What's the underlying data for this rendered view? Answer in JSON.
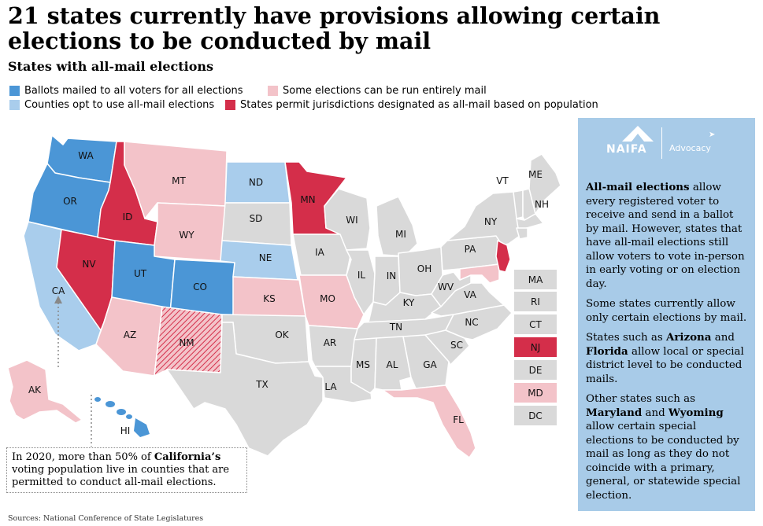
{
  "title": "21 states currently have provisions allowing certain elections to be conducted by mail",
  "subtitle": "States with all-mail elections",
  "legend": {
    "items": [
      {
        "label": "Ballots mailed to all voters for all elections",
        "color": "#4b96d6"
      },
      {
        "label": "Some elections can be run entirely mail",
        "color": "#f3c3c9"
      },
      {
        "label": "Counties opt to use all-mail elections",
        "color": "#a9cdec"
      },
      {
        "label": "States permit jurisdictions designated as all-mail based on population",
        "color": "#d42e4a"
      }
    ]
  },
  "colors": {
    "all_mail": "#4b96d6",
    "some_mail": "#f3c3c9",
    "county_opt": "#a9cdec",
    "population": "#d42e4a",
    "none": "#d9d9d9",
    "panel": "#a8cbe8"
  },
  "states": {
    "WA": "WA",
    "OR": "OR",
    "CA": "CA",
    "NV": "NV",
    "ID": "ID",
    "MT": "MT",
    "WY": "WY",
    "UT": "UT",
    "CO": "CO",
    "AZ": "AZ",
    "NM": "NM",
    "ND": "ND",
    "SD": "SD",
    "NE": "NE",
    "KS": "KS",
    "OK": "OK",
    "TX": "TX",
    "MN": "MN",
    "IA": "IA",
    "MO": "MO",
    "AR": "AR",
    "LA": "LA",
    "WI": "WI",
    "IL": "IL",
    "MI": "MI",
    "IN": "IN",
    "OH": "OH",
    "KY": "KY",
    "TN": "TN",
    "MS": "MS",
    "AL": "AL",
    "GA": "GA",
    "FL": "FL",
    "SC": "SC",
    "NC": "NC",
    "VA": "VA",
    "WV": "WV",
    "PA": "PA",
    "NY": "NY",
    "VT": "VT",
    "NH": "NH",
    "ME": "ME",
    "AK": "AK",
    "HI": "HI"
  },
  "small_states": [
    {
      "abbr": "MA",
      "color": "#d9d9d9"
    },
    {
      "abbr": "RI",
      "color": "#d9d9d9"
    },
    {
      "abbr": "CT",
      "color": "#d9d9d9"
    },
    {
      "abbr": "NJ",
      "color": "#d42e4a"
    },
    {
      "abbr": "DE",
      "color": "#d9d9d9"
    },
    {
      "abbr": "MD",
      "color": "#f3c3c9"
    },
    {
      "abbr": "DC",
      "color": "#d9d9d9"
    }
  ],
  "callout": {
    "pre": "In 2020, more than 50% of ",
    "bold": "California’s",
    "post": " voting population live in counties that are permitted to conduct all-mail elections."
  },
  "logo": {
    "brand": "NAIFA",
    "tag": "Advocacy"
  },
  "panel": {
    "p1_bold": "All-mail elections",
    "p1_rest": " allow every registered voter to receive and send in a ballot by mail. However, states that have all-mail elections still allow voters to vote in-person in early voting or on election day.",
    "p2": "Some states currently allow only certain elections by mail.",
    "p3_a": "States such as ",
    "p3_b1": "Arizona",
    "p3_c": " and ",
    "p3_b2": "Florida",
    "p3_d": " allow local or special district level to be conducted mails.",
    "p4_a": "Other states such as ",
    "p4_b1": "Maryland",
    "p4_c": " and ",
    "p4_b2": "Wyoming",
    "p4_d": " allow certain special elections to be conducted by mail as long as they do not coincide with a primary, general, or statewide special election."
  },
  "sources": "Sources: National Conference of State Legislatures"
}
